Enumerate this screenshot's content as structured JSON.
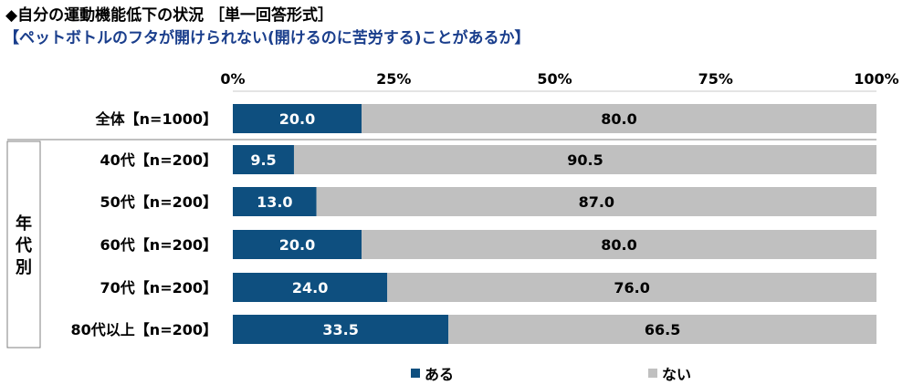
{
  "title": "◆自分の運動機能低下の状況 ［単一回答形式］",
  "subtitle": "【ペットボトルのフタが開けられない(開けるのに苦労する)ことがあるか】",
  "group_label": "年代別",
  "colors": {
    "aru": "#0e4f7f",
    "nai": "#c0c0c0",
    "value_on_dark": "#ffffff",
    "value_on_light": "#000000"
  },
  "chart_data": {
    "type": "bar",
    "orientation": "horizontal",
    "stacked": "100%",
    "categories": [
      "全体【n=1000】",
      "40代【n=200】",
      "50代【n=200】",
      "60代【n=200】",
      "70代【n=200】",
      "80代以上【n=200】"
    ],
    "series": [
      {
        "name": "ある",
        "values": [
          20.0,
          9.5,
          13.0,
          20.0,
          24.0,
          33.5
        ]
      },
      {
        "name": "ない",
        "values": [
          80.0,
          90.5,
          87.0,
          80.0,
          76.0,
          66.5
        ]
      }
    ],
    "value_labels": [
      [
        "20.0",
        "9.5",
        "13.0",
        "20.0",
        "24.0",
        "33.5"
      ],
      [
        "80.0",
        "90.5",
        "87.0",
        "80.0",
        "76.0",
        "66.5"
      ]
    ],
    "xlim": [
      0,
      100
    ],
    "xticks": [
      "0%",
      "25%",
      "50%",
      "75%",
      "100%"
    ],
    "tick_position": "top",
    "grid": false,
    "legend_position": "bottom"
  }
}
